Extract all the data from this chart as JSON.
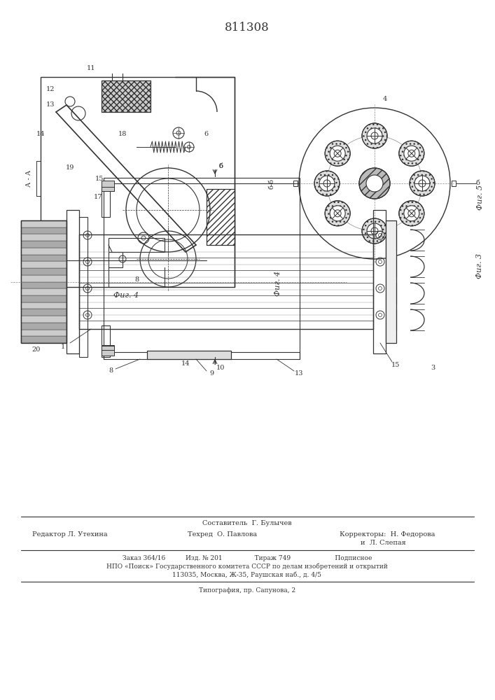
{
  "patent_number": "811308",
  "bg_color": "#ffffff",
  "lc": "#333333",
  "footer_composer": "Составитель  Г. Булычев",
  "footer_editor": "Редактор Л. Утехина",
  "footer_tech": "Техред  О. Павлова",
  "footer_corr": "Корректоры:  Н. Федорова",
  "footer_corr2": "и  Л. Слепая",
  "footer_order": "Заказ 364/16          Изд. № 201                Тираж 749                      Подписное",
  "footer_npo": "НПО «Поиск» Государственного комитета СССР по делам изобретений и открытий",
  "footer_addr": "113035, Москва, Ж-35, Раушская наб., д. 4/5",
  "footer_typo": "Типография, пр. Сапунова, 2",
  "fig4_label": "Фиг. 4",
  "fig5_label": "Фиг. 5",
  "fig3_label": "Фиг. 3",
  "aa_label": "А - А"
}
